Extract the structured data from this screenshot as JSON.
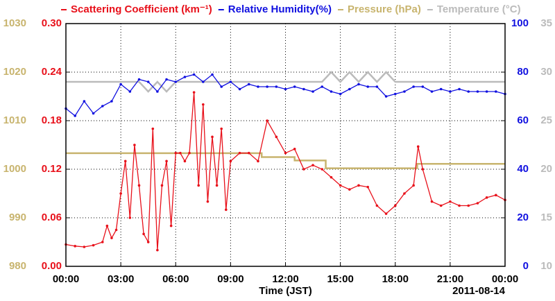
{
  "chart_data": {
    "type": "line",
    "x_label": "Time (JST)",
    "date_label": "2011-08-14",
    "xlim": [
      0,
      24
    ],
    "xticks": [
      {
        "value": 0,
        "label": "00:00"
      },
      {
        "value": 3,
        "label": "03:00"
      },
      {
        "value": 6,
        "label": "06:00"
      },
      {
        "value": 9,
        "label": "09:00"
      },
      {
        "value": 12,
        "label": "12:00"
      },
      {
        "value": 15,
        "label": "15:00"
      },
      {
        "value": 18,
        "label": "18:00"
      },
      {
        "value": 21,
        "label": "21:00"
      },
      {
        "value": 24,
        "label": "00:00"
      }
    ],
    "ylim": [
      0,
      0.3
    ],
    "yticks": [
      {
        "value": 0,
        "label": "0.00"
      },
      0.06,
      0.12,
      0.18,
      0.24,
      {
        "value": 0.3,
        "label": "0.30"
      }
    ],
    "y2lim": [
      0,
      100
    ],
    "y2ticks": [
      0,
      20,
      40,
      60,
      80,
      100
    ],
    "y3lim": [
      980,
      1030
    ],
    "y3ticks": [
      980,
      990,
      1000,
      1010,
      1020,
      1030
    ],
    "y4lim": [
      10,
      35
    ],
    "y4ticks": [
      10,
      15,
      20,
      25,
      30,
      35
    ],
    "grid": true,
    "series": [
      {
        "name": "Scattering Coefficient (km⁻¹)",
        "color": "#e8101a",
        "axis": "y",
        "markers": true,
        "x": [
          0,
          0.5,
          1,
          1.5,
          2,
          2.25,
          2.5,
          2.75,
          3,
          3.25,
          3.5,
          3.75,
          4,
          4.25,
          4.5,
          4.75,
          5,
          5.25,
          5.5,
          5.75,
          6,
          6.25,
          6.5,
          6.75,
          7,
          7.25,
          7.5,
          7.75,
          8,
          8.25,
          8.5,
          8.75,
          9,
          9.5,
          10,
          10.5,
          11,
          11.5,
          12,
          12.5,
          13,
          13.5,
          14,
          14.5,
          15,
          15.5,
          16,
          16.5,
          17,
          17.5,
          18,
          18.5,
          19,
          19.25,
          19.5,
          20,
          20.5,
          21,
          21.5,
          22,
          22.5,
          23,
          23.5,
          24
        ],
        "values": [
          0.027,
          0.025,
          0.024,
          0.026,
          0.03,
          0.05,
          0.035,
          0.045,
          0.09,
          0.13,
          0.06,
          0.15,
          0.1,
          0.04,
          0.03,
          0.17,
          0.02,
          0.1,
          0.13,
          0.05,
          0.14,
          0.14,
          0.13,
          0.14,
          0.215,
          0.1,
          0.2,
          0.08,
          0.16,
          0.1,
          0.17,
          0.07,
          0.13,
          0.14,
          0.14,
          0.13,
          0.18,
          0.16,
          0.14,
          0.145,
          0.12,
          0.125,
          0.12,
          0.11,
          0.1,
          0.095,
          0.1,
          0.098,
          0.075,
          0.065,
          0.075,
          0.09,
          0.1,
          0.148,
          0.12,
          0.08,
          0.075,
          0.08,
          0.075,
          0.075,
          0.078,
          0.085,
          0.088,
          0.082
        ]
      },
      {
        "name": "Relative Humidity(%)",
        "color": "#1010e0",
        "axis": "y2",
        "markers": true,
        "x": [
          0,
          0.5,
          1,
          1.5,
          2,
          2.5,
          3,
          3.5,
          4,
          4.5,
          5,
          5.5,
          6,
          6.5,
          7,
          7.5,
          8,
          8.5,
          9,
          9.5,
          10,
          10.5,
          11,
          11.5,
          12,
          12.5,
          13,
          13.5,
          14,
          14.5,
          15,
          15.5,
          16,
          16.5,
          17,
          17.5,
          18,
          18.5,
          19,
          19.5,
          20,
          20.5,
          21,
          21.5,
          22,
          22.5,
          23,
          23.5,
          24
        ],
        "values": [
          65,
          62,
          68,
          63,
          66,
          68,
          75,
          72,
          77,
          76,
          72,
          77,
          76,
          78,
          79,
          76,
          79,
          74,
          76,
          73,
          75,
          74,
          74,
          74,
          73,
          74,
          73,
          72,
          74,
          72,
          71,
          73,
          75,
          74,
          74,
          70,
          71,
          72,
          74,
          74,
          72,
          73,
          72,
          73,
          72,
          72,
          72,
          72,
          71
        ]
      },
      {
        "name": "Pressure (hPa)",
        "color": "#c8b46e",
        "axis": "y3",
        "markers": false,
        "x": [
          0,
          10.7,
          10.7,
          12.5,
          12.5,
          14.2,
          14.2,
          19.2,
          19.2,
          24
        ],
        "values": [
          1003.3,
          1003.3,
          1002.5,
          1002.5,
          1001.8,
          1001.8,
          1000.2,
          1000.2,
          1001.1,
          1001.1
        ]
      },
      {
        "name": "Temperature (°C)",
        "color": "#bbbbbb",
        "axis": "y4",
        "markers": false,
        "x": [
          0,
          4,
          4.5,
          5,
          5.5,
          6,
          14,
          14.5,
          15,
          15.5,
          16,
          16.5,
          17,
          17.5,
          18,
          24
        ],
        "values": [
          29,
          29,
          28,
          29,
          28,
          29,
          29,
          30,
          29,
          30,
          29,
          30,
          29,
          30,
          29,
          29
        ]
      }
    ]
  }
}
